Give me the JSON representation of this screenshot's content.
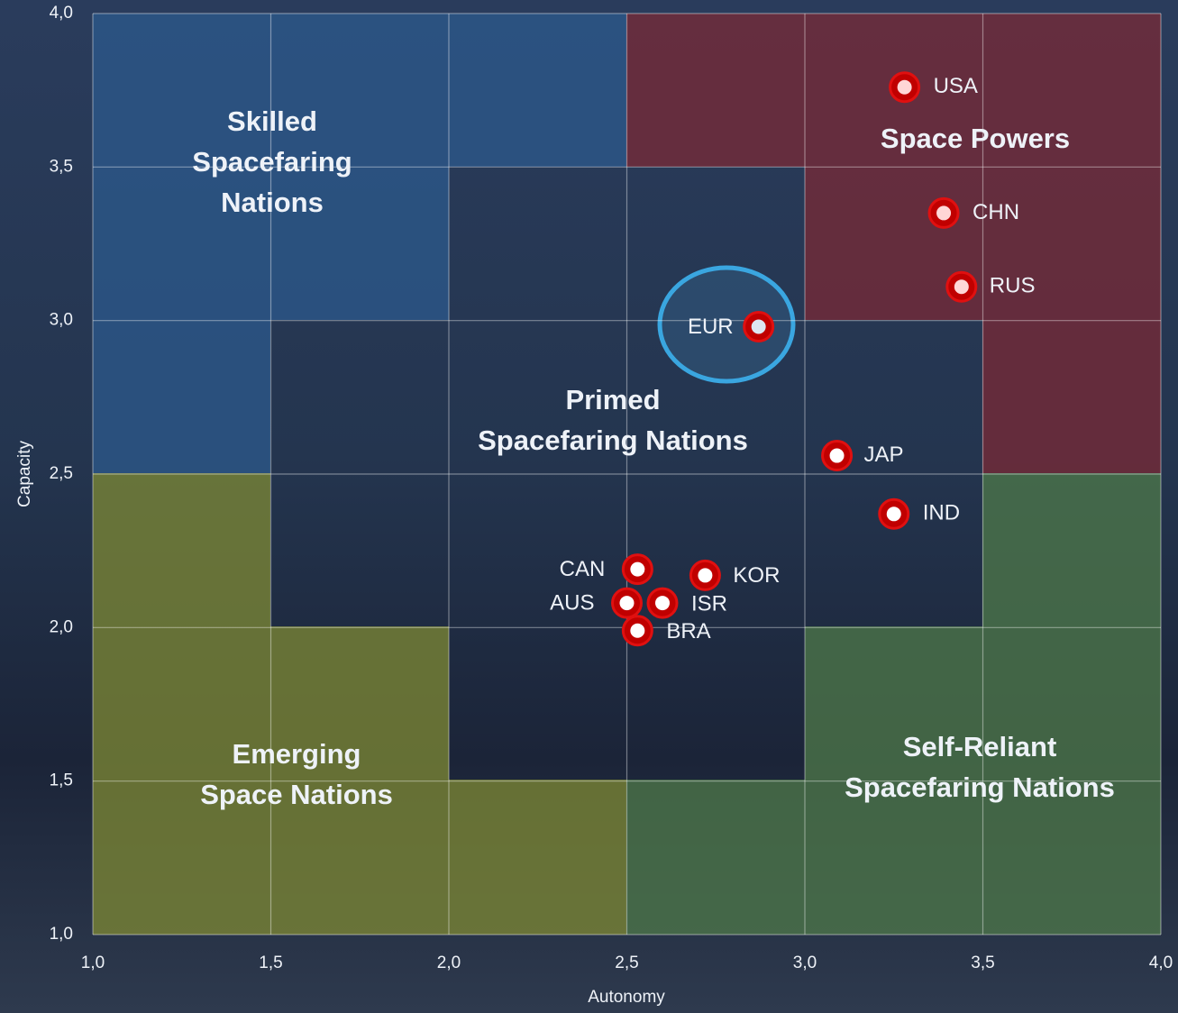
{
  "chart_data": {
    "type": "scatter",
    "x_label": "Autonomy",
    "y_label": "Capacity",
    "xlim": [
      1.0,
      4.0
    ],
    "ylim": [
      1.0,
      4.0
    ],
    "xticks": [
      {
        "value": 1.0,
        "label": "1,0"
      },
      {
        "value": 1.5,
        "label": "1,5"
      },
      {
        "value": 2.0,
        "label": "2,0"
      },
      {
        "value": 2.5,
        "label": "2,5"
      },
      {
        "value": 3.0,
        "label": "3,0"
      },
      {
        "value": 3.5,
        "label": "3,5"
      },
      {
        "value": 4.0,
        "label": "4,0"
      }
    ],
    "yticks": [
      {
        "value": 1.0,
        "label": "1,0"
      },
      {
        "value": 1.5,
        "label": "1,5"
      },
      {
        "value": 2.0,
        "label": "2,0"
      },
      {
        "value": 2.5,
        "label": "2,5"
      },
      {
        "value": 3.0,
        "label": "3,0"
      },
      {
        "value": 3.5,
        "label": "3,5"
      },
      {
        "value": 4.0,
        "label": "4,0"
      }
    ],
    "grid": true,
    "point_labels": [
      "USA",
      "CHN",
      "RUS",
      "EUR",
      "JAP",
      "IND",
      "CAN",
      "KOR",
      "AUS",
      "ISR",
      "BRA"
    ],
    "x": [
      3.28,
      3.39,
      3.44,
      2.87,
      3.09,
      3.25,
      2.53,
      2.72,
      2.5,
      2.6,
      2.53
    ],
    "series": [
      {
        "color": "#c00000",
        "values": [
          3.76,
          3.35,
          3.11,
          2.98,
          2.56,
          2.37,
          2.19,
          2.17,
          2.08,
          2.08,
          1.99
        ]
      }
    ],
    "regions": [
      {
        "lines": [
          "Skilled",
          "Spacefaring",
          "Nations"
        ]
      },
      {
        "lines": [
          "Space Powers"
        ]
      },
      {
        "lines": [
          "Primed",
          "Spacefaring Nations"
        ]
      },
      {
        "lines": [
          "Emerging",
          "Space Nations"
        ]
      },
      {
        "lines": [
          "Self-Reliant",
          "Spacefaring Nations"
        ]
      }
    ]
  }
}
